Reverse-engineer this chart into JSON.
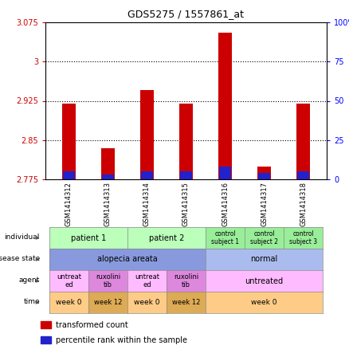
{
  "title": "GDS5275 / 1557861_at",
  "samples": [
    "GSM1414312",
    "GSM1414313",
    "GSM1414314",
    "GSM1414315",
    "GSM1414316",
    "GSM1414317",
    "GSM1414318"
  ],
  "transformed_count": [
    2.92,
    2.835,
    2.945,
    2.92,
    3.055,
    2.8,
    2.92
  ],
  "percentile_rank": [
    5,
    3,
    5,
    5,
    8,
    4,
    5
  ],
  "ylim_left": [
    2.775,
    3.075
  ],
  "ylim_right": [
    0,
    100
  ],
  "yticks_left": [
    2.775,
    2.85,
    2.925,
    3.0,
    3.075
  ],
  "yticks_right": [
    0,
    25,
    50,
    75,
    100
  ],
  "hlines": [
    2.85,
    2.925,
    3.0
  ],
  "bar_width": 0.35,
  "red_color": "#cc0000",
  "blue_color": "#2222cc",
  "annotation_rows": [
    {
      "label": "individual",
      "cells": [
        {
          "text": "patient 1",
          "span": 2,
          "color": "#bbffbb",
          "fontsize": 7
        },
        {
          "text": "patient 2",
          "span": 2,
          "color": "#bbffbb",
          "fontsize": 7
        },
        {
          "text": "control\nsubject 1",
          "span": 1,
          "color": "#99ee99",
          "fontsize": 5.5
        },
        {
          "text": "control\nsubject 2",
          "span": 1,
          "color": "#99ee99",
          "fontsize": 5.5
        },
        {
          "text": "control\nsubject 3",
          "span": 1,
          "color": "#99ee99",
          "fontsize": 5.5
        }
      ]
    },
    {
      "label": "disease state",
      "cells": [
        {
          "text": "alopecia areata",
          "span": 4,
          "color": "#8899dd",
          "fontsize": 7
        },
        {
          "text": "normal",
          "span": 3,
          "color": "#aabbee",
          "fontsize": 7
        }
      ]
    },
    {
      "label": "agent",
      "cells": [
        {
          "text": "untreat\ned",
          "span": 1,
          "color": "#ffbbff",
          "fontsize": 6
        },
        {
          "text": "ruxolini\ntib",
          "span": 1,
          "color": "#dd88dd",
          "fontsize": 6
        },
        {
          "text": "untreat\ned",
          "span": 1,
          "color": "#ffbbff",
          "fontsize": 6
        },
        {
          "text": "ruxolini\ntib",
          "span": 1,
          "color": "#dd88dd",
          "fontsize": 6
        },
        {
          "text": "untreated",
          "span": 3,
          "color": "#ffbbff",
          "fontsize": 7
        }
      ]
    },
    {
      "label": "time",
      "cells": [
        {
          "text": "week 0",
          "span": 1,
          "color": "#ffcc88",
          "fontsize": 6.5
        },
        {
          "text": "week 12",
          "span": 1,
          "color": "#ddaa55",
          "fontsize": 6
        },
        {
          "text": "week 0",
          "span": 1,
          "color": "#ffcc88",
          "fontsize": 6.5
        },
        {
          "text": "week 12",
          "span": 1,
          "color": "#ddaa55",
          "fontsize": 6
        },
        {
          "text": "week 0",
          "span": 3,
          "color": "#ffcc88",
          "fontsize": 6.5
        }
      ]
    }
  ],
  "legend": [
    {
      "color": "#cc0000",
      "label": "transformed count"
    },
    {
      "color": "#2222cc",
      "label": "percentile rank within the sample"
    }
  ]
}
